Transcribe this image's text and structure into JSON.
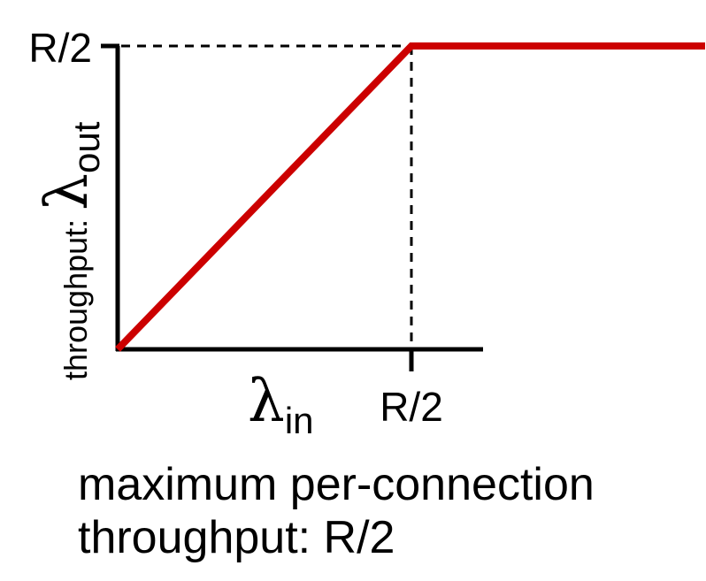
{
  "chart_data": {
    "type": "line",
    "series": [
      {
        "x": [
          0,
          1,
          2
        ],
        "y": [
          0,
          1,
          1
        ],
        "color": "#cc0000"
      }
    ],
    "xlim": [
      0,
      1.6
    ],
    "ylim": [
      0,
      1
    ],
    "x_ticks": [
      {
        "value": 1,
        "label": "R/2"
      }
    ],
    "y_ticks": [
      {
        "value": 1,
        "label": "R/2"
      }
    ],
    "xlabel": {
      "symbol": "λ",
      "subscript": "in"
    },
    "ylabel": {
      "prefix": "throughput: ",
      "symbol": "λ",
      "subscript": "out"
    },
    "reference_lines": "dashed lines from the R/2 ticks to the knee",
    "grid": false
  },
  "caption": {
    "line1": "maximum per-connection",
    "line2": "throughput: R/2"
  }
}
